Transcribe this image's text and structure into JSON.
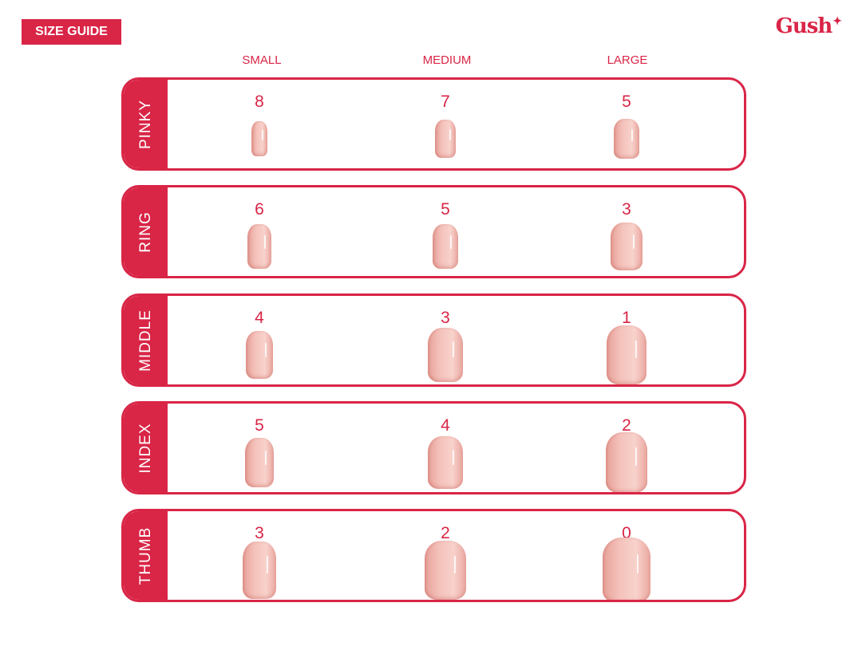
{
  "header": {
    "badge": "SIZE GUIDE",
    "logo": "Gush"
  },
  "columns": [
    "SMALL",
    "MEDIUM",
    "LARGE"
  ],
  "rows": [
    {
      "finger": "PINKY",
      "sizes": [
        "8",
        "7",
        "5"
      ]
    },
    {
      "finger": "RING",
      "sizes": [
        "6",
        "5",
        "3"
      ]
    },
    {
      "finger": "MIDDLE",
      "sizes": [
        "4",
        "3",
        "1"
      ]
    },
    {
      "finger": "INDEX",
      "sizes": [
        "5",
        "4",
        "2"
      ]
    },
    {
      "finger": "THUMB",
      "sizes": [
        "3",
        "2",
        "0"
      ]
    }
  ],
  "colors": {
    "accent": "#d92546",
    "nail": "#f4c2bb"
  }
}
